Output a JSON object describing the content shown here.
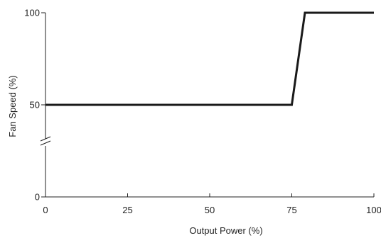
{
  "chart_data": {
    "type": "line",
    "xlabel": "Output Power (%)",
    "ylabel": "Fan Speed (%)",
    "xlim": [
      0,
      100
    ],
    "ylim": [
      0,
      100
    ],
    "x_ticks": [
      "0",
      "25",
      "50",
      "75",
      "100"
    ],
    "y_ticks": [
      "0",
      "50",
      "100"
    ],
    "y_axis_break": true,
    "grid": false,
    "series": [
      {
        "x": [
          0,
          75,
          79,
          100
        ],
        "y": [
          50,
          50,
          100,
          100
        ]
      }
    ],
    "colors": {
      "line": "#1a1a1a",
      "axis": "#222222"
    }
  }
}
